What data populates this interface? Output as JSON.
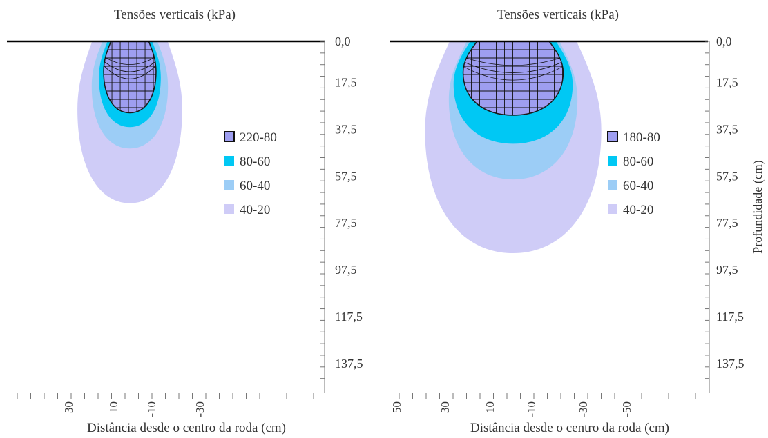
{
  "chart_data": [
    {
      "type": "heatmap",
      "title": "Tensões verticais (kPa)",
      "xlabel": "Distância desde o centro da roda (cm)",
      "ylabel": "",
      "ylim": [
        0,
        150
      ],
      "y_ticks": [
        "0,0",
        "17,5",
        "37,5",
        "57,5",
        "77,5",
        "97,5",
        "117,5",
        "137,5"
      ],
      "x_tick_labels": [
        "30",
        "10",
        "-10",
        "-30"
      ],
      "xlim": [
        50,
        -50
      ],
      "legend": [
        {
          "label": "220-80",
          "color": "#9e9ef0",
          "hatched": true
        },
        {
          "label": "80-60",
          "color": "#00c8f4",
          "hatched": false
        },
        {
          "label": "60-40",
          "color": "#9ccdf6",
          "hatched": false
        },
        {
          "label": "40-20",
          "color": "#cfccf7",
          "hatched": false
        }
      ],
      "contours": [
        {
          "range": "40-20",
          "half_width": 22,
          "max_depth": 68
        },
        {
          "range": "60-40",
          "half_width": 16,
          "max_depth": 45
        },
        {
          "range": "80-60",
          "half_width": 13,
          "max_depth": 36
        },
        {
          "range": "220-80",
          "half_width": 11,
          "max_depth": 30
        }
      ]
    },
    {
      "type": "heatmap",
      "title": "Tensões verticais (kPa)",
      "xlabel": "Distância desde o centro da roda (cm)",
      "ylabel": "Profundidade (cm)",
      "ylim": [
        0,
        150
      ],
      "y_ticks": [
        "0,0",
        "17,5",
        "37,5",
        "57,5",
        "77,5",
        "97,5",
        "117,5",
        "137,5"
      ],
      "x_tick_labels": [
        "50",
        "30",
        "10",
        "-10",
        "-30",
        "-50"
      ],
      "xlim": [
        70,
        -70
      ],
      "legend": [
        {
          "label": "180-80",
          "color": "#9e9ef0",
          "hatched": true
        },
        {
          "label": "80-60",
          "color": "#00c8f4",
          "hatched": false
        },
        {
          "label": "60-40",
          "color": "#9ccdf6",
          "hatched": false
        },
        {
          "label": "40-20",
          "color": "#cfccf7",
          "hatched": false
        }
      ],
      "contours": [
        {
          "range": "40-20",
          "half_width": 37,
          "max_depth": 89
        },
        {
          "range": "60-40",
          "half_width": 27,
          "max_depth": 58
        },
        {
          "range": "80-60",
          "half_width": 25,
          "max_depth": 43
        },
        {
          "range": "180-80",
          "half_width": 21,
          "max_depth": 31
        }
      ]
    }
  ]
}
